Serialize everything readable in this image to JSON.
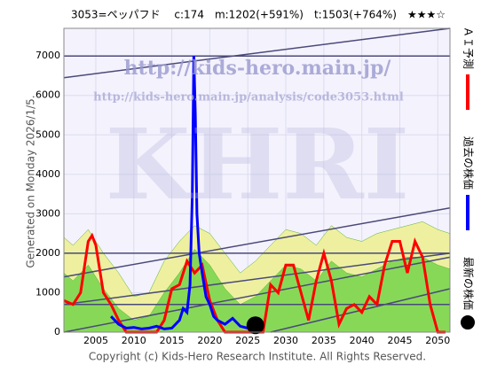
{
  "chart_data": {
    "type": "line",
    "title": "3053=ペッパフド　 c:174　m:1202(+591%)　t:1503(+764%)　★★★☆",
    "generated": "Generated on Monday 2026/1/5.",
    "copyright": "Copyright (c) Kids-Hero Research Institute. All Rights Reserved.",
    "watermarks": [
      "http://kids-hero.main.jp/",
      "http://kids-hero.main.jp/analysis/code3053.html",
      "KHRI"
    ],
    "xlim": [
      2000.8,
      2051.6
    ],
    "ylim": [
      0,
      7700
    ],
    "xticks": [
      2005,
      2010,
      2015,
      2020,
      2025,
      2030,
      2035,
      2040,
      2045,
      2050
    ],
    "yticks": [
      0,
      1000,
      2000,
      3000,
      4000,
      5000,
      6000,
      7000
    ],
    "grid": true,
    "series": [
      {
        "type": "area",
        "color": "#eef0a0",
        "x": [
          2000.8,
          2002,
          2004,
          2006,
          2008,
          2010,
          2012,
          2014,
          2016,
          2018,
          2020,
          2022,
          2024,
          2026,
          2028,
          2030,
          2032,
          2034,
          2036,
          2038,
          2040,
          2042,
          2044,
          2046,
          2048,
          2050,
          2051.6
        ],
        "values": [
          2400,
          2200,
          2600,
          2000,
          1500,
          900,
          1000,
          1800,
          2300,
          2700,
          2500,
          2000,
          1500,
          1800,
          2200,
          2600,
          2500,
          2200,
          2700,
          2400,
          2300,
          2500,
          2600,
          2700,
          2800,
          2600,
          2500
        ]
      },
      {
        "type": "area",
        "color": "#88d858",
        "x": [
          2000.8,
          2002,
          2004,
          2006,
          2008,
          2010,
          2012,
          2014,
          2016,
          2018,
          2020,
          2022,
          2024,
          2026,
          2028,
          2030,
          2032,
          2034,
          2036,
          2038,
          2040,
          2042,
          2044,
          2046,
          2048,
          2050,
          2051.6
        ],
        "values": [
          1500,
          1300,
          1700,
          1100,
          600,
          300,
          400,
          1000,
          1500,
          2100,
          1700,
          1100,
          700,
          900,
          1300,
          1700,
          1600,
          1300,
          1800,
          1500,
          1400,
          1600,
          1800,
          1900,
          1900,
          1700,
          1600
        ]
      },
      {
        "type": "line",
        "color": "#4a4a7a",
        "x": [
          2000.8,
          2051.6
        ],
        "values": [
          6450,
          7700
        ]
      },
      {
        "type": "line",
        "color": "#4a4a7a",
        "x": [
          2000.8,
          2051.6
        ],
        "values": [
          7000,
          7000
        ]
      },
      {
        "type": "line",
        "color": "#4a4a7a",
        "x": [
          2000.8,
          2051.6
        ],
        "values": [
          1400,
          3150
        ]
      },
      {
        "type": "line",
        "color": "#4a4a7a",
        "x": [
          2000.8,
          2051.6
        ],
        "values": [
          2000,
          2000
        ]
      },
      {
        "type": "line",
        "color": "#4a4a7a",
        "x": [
          2000.8,
          2051.6
        ],
        "values": [
          700,
          2000
        ]
      },
      {
        "type": "line",
        "color": "#4a4a7a",
        "x": [
          2000.8,
          2051.6
        ],
        "values": [
          700,
          700
        ]
      },
      {
        "type": "line",
        "color": "#4a4a7a",
        "x": [
          2000.8,
          2051.6
        ],
        "values": [
          0,
          1900
        ]
      },
      {
        "type": "line",
        "color": "#4a4a7a",
        "x": [
          2028,
          2051.6
        ],
        "values": [
          0,
          1100
        ]
      },
      {
        "type": "line",
        "name": "ＡＩ予測",
        "color": "#ff0000",
        "x": [
          2000.8,
          2002,
          2003,
          2004,
          2004.5,
          2005,
          2006,
          2007,
          2008,
          2009,
          2013,
          2014,
          2015,
          2016,
          2017,
          2018,
          2019,
          2020,
          2021,
          2022,
          2027,
          2028,
          2029,
          2030,
          2031,
          2032,
          2033,
          2034,
          2035,
          2036,
          2037,
          2038,
          2039,
          2040,
          2041,
          2042,
          2043,
          2044,
          2045,
          2046,
          2047,
          2048,
          2049,
          2050,
          2051
        ],
        "values": [
          800,
          700,
          1000,
          2300,
          2450,
          2200,
          1000,
          700,
          300,
          0,
          0,
          300,
          1100,
          1200,
          1800,
          1500,
          1700,
          800,
          300,
          0,
          0,
          1200,
          1000,
          1700,
          1700,
          1000,
          300,
          1300,
          2000,
          1300,
          200,
          600,
          700,
          500,
          900,
          700,
          1700,
          2300,
          2300,
          1500,
          2300,
          1900,
          700,
          0,
          0
        ]
      },
      {
        "type": "line",
        "name": "過去の株価",
        "color": "#0000ff",
        "x": [
          2007,
          2008,
          2009,
          2010,
          2011,
          2012,
          2013,
          2014,
          2015,
          2016,
          2016.5,
          2017,
          2017.4,
          2017.7,
          2017.9,
          2018.1,
          2018.3,
          2018.6,
          2019,
          2019.5,
          2020,
          2020.5,
          2021,
          2022,
          2023,
          2024,
          2025
        ],
        "values": [
          400,
          200,
          100,
          120,
          80,
          100,
          150,
          80,
          100,
          300,
          600,
          500,
          1200,
          3500,
          7000,
          5500,
          3000,
          2000,
          1500,
          900,
          700,
          400,
          300,
          200,
          350,
          150,
          100
        ]
      },
      {
        "type": "point",
        "name": "最新の株価",
        "color": "#000000",
        "x": [
          2026
        ],
        "values": [
          174
        ]
      }
    ]
  }
}
